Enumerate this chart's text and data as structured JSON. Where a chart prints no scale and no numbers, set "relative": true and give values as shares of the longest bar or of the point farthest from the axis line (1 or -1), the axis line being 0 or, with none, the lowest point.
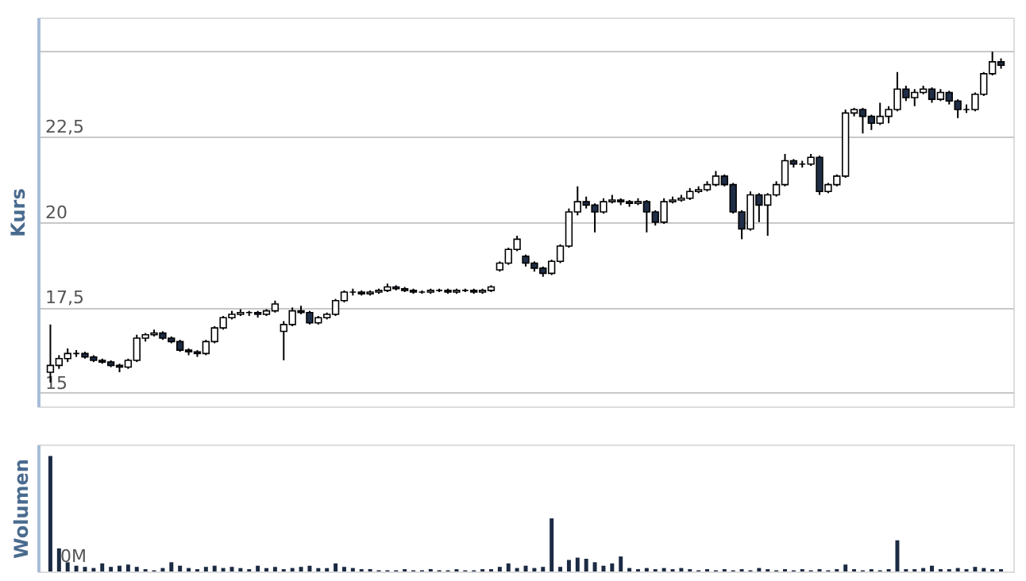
{
  "chart_data": [
    {
      "type": "candlestick",
      "ylabel": "Kurs",
      "grid": "y",
      "ylim": [
        14.6,
        26
      ],
      "colors": [
        "#ffffff",
        "#ffffff",
        "#ffffff",
        "#000000",
        "#1f2d47",
        "#1f2d47",
        "#1f2d47",
        "#1f2d47",
        "#1f2d47",
        "#ffffff",
        "#ffffff",
        "#ffffff",
        "#ffffff",
        "#1f2d47",
        "#1f2d47",
        "#1f2d47",
        "#1f2d47",
        "#1f2d47",
        "#ffffff",
        "#ffffff",
        "#ffffff",
        "#ffffff",
        "#ffffff",
        "#000000",
        "#1f2d47",
        "#ffffff",
        "#ffffff",
        "#ffffff",
        "#ffffff",
        "#1f2d47",
        "#1f2d47",
        "#ffffff",
        "#ffffff",
        "#ffffff",
        "#ffffff",
        "#000000",
        "#1f2d47",
        "#ffffff",
        "#ffffff",
        "#ffffff",
        "#1f2d47",
        "#1f2d47",
        "#1f2d47",
        "#000000",
        "#ffffff",
        "#000000",
        "#1f2d47",
        "#ffffff",
        "#000000",
        "#1f2d47",
        "#ffffff",
        "#ffffff",
        "#ffffff",
        "#ffffff",
        "#ffffff",
        "#1f2d47",
        "#1f2d47",
        "#1f2d47",
        "#ffffff",
        "#ffffff",
        "#ffffff",
        "#ffffff",
        "#1f2d47",
        "#1f2d47",
        "#ffffff",
        "#ffffff",
        "#1f2d47",
        "#1f2d47",
        "#ffffff",
        "#1f2d47",
        "#1f2d47",
        "#ffffff",
        "#ffffff",
        "#ffffff",
        "#ffffff",
        "#ffffff",
        "#ffffff",
        "#ffffff",
        "#1f2d47",
        "#1f2d47",
        "#1f2d47",
        "#ffffff",
        "#1f2d47",
        "#ffffff",
        "#ffffff",
        "#ffffff",
        "#1f2d47",
        "#000000",
        "#ffffff",
        "#1f2d47",
        "#ffffff",
        "#ffffff",
        "#ffffff",
        "#ffffff",
        "#1f2d47",
        "#1f2d47",
        "#ffffff",
        "#ffffff",
        "#ffffff",
        "#1f2d47",
        "#ffffff",
        "#ffffff",
        "#1f2d47",
        "#ffffff",
        "#1f2d47",
        "#1f2d47",
        "#000000",
        "#ffffff",
        "#ffffff",
        "#ffffff",
        "#1f2d47"
      ],
      "yticks": [
        15,
        {
          "value": 17.5,
          "label": "17,5"
        },
        20,
        {
          "value": 22.5,
          "label": "22,5"
        },
        {
          "value": 25,
          "label": null
        }
      ],
      "categories": [
        null,
        null,
        null,
        null,
        null,
        null,
        null,
        null,
        null,
        null,
        null,
        null,
        null,
        null,
        null,
        null,
        null,
        null,
        null,
        null,
        null,
        null,
        null,
        null,
        null,
        null,
        null,
        null,
        null,
        null,
        null,
        null,
        null,
        null,
        null,
        null,
        null,
        null,
        null,
        null,
        null,
        null,
        null,
        null,
        null,
        null,
        null,
        null,
        null,
        null,
        null,
        null,
        null,
        null,
        null,
        null,
        null,
        null,
        null,
        null,
        null,
        null,
        null,
        null,
        null,
        null,
        null,
        null,
        null,
        null,
        null,
        null,
        null,
        null,
        null,
        null,
        null,
        null,
        null,
        null,
        null,
        null,
        null,
        null,
        null,
        null,
        null,
        null,
        null,
        null,
        null,
        null,
        null,
        null,
        null,
        null,
        null,
        null,
        null,
        null,
        null,
        null,
        null,
        null,
        null,
        null,
        null,
        null,
        null,
        null,
        null
      ],
      "ohlc": [
        [
          15.6,
          17.0,
          15.3,
          15.8
        ],
        [
          15.8,
          16.1,
          15.7,
          16.0
        ],
        [
          16.0,
          16.3,
          15.9,
          16.15
        ],
        [
          16.15,
          16.25,
          16.05,
          16.15
        ],
        [
          16.15,
          16.2,
          16.0,
          16.05
        ],
        [
          16.05,
          16.1,
          15.9,
          15.95
        ],
        [
          15.95,
          16.0,
          15.85,
          15.9
        ],
        [
          15.9,
          15.95,
          15.75,
          15.8
        ],
        [
          15.8,
          15.85,
          15.6,
          15.75
        ],
        [
          15.75,
          16.0,
          15.7,
          15.95
        ],
        [
          15.95,
          16.7,
          15.9,
          16.6
        ],
        [
          16.6,
          16.75,
          16.5,
          16.7
        ],
        [
          16.7,
          16.85,
          16.65,
          16.75
        ],
        [
          16.75,
          16.8,
          16.55,
          16.6
        ],
        [
          16.6,
          16.65,
          16.45,
          16.5
        ],
        [
          16.5,
          16.55,
          16.2,
          16.25
        ],
        [
          16.25,
          16.3,
          16.1,
          16.2
        ],
        [
          16.2,
          16.25,
          16.05,
          16.15
        ],
        [
          16.15,
          16.55,
          16.1,
          16.5
        ],
        [
          16.5,
          16.95,
          16.45,
          16.9
        ],
        [
          16.9,
          17.25,
          16.85,
          17.2
        ],
        [
          17.2,
          17.4,
          17.15,
          17.3
        ],
        [
          17.3,
          17.45,
          17.25,
          17.35
        ],
        [
          17.35,
          17.4,
          17.25,
          17.35
        ],
        [
          17.35,
          17.4,
          17.2,
          17.3
        ],
        [
          17.3,
          17.45,
          17.25,
          17.4
        ],
        [
          17.4,
          17.7,
          17.35,
          17.6
        ],
        [
          16.8,
          17.1,
          15.95,
          17.0
        ],
        [
          17.0,
          17.5,
          16.95,
          17.4
        ],
        [
          17.4,
          17.55,
          17.3,
          17.35
        ],
        [
          17.35,
          17.4,
          17.0,
          17.05
        ],
        [
          17.05,
          17.25,
          17.0,
          17.2
        ],
        [
          17.2,
          17.35,
          17.15,
          17.3
        ],
        [
          17.3,
          17.75,
          17.25,
          17.7
        ],
        [
          17.7,
          18.0,
          17.65,
          17.95
        ],
        [
          17.95,
          18.05,
          17.85,
          17.95
        ],
        [
          17.95,
          18.0,
          17.85,
          17.9
        ],
        [
          17.9,
          18.0,
          17.85,
          17.95
        ],
        [
          17.95,
          18.05,
          17.9,
          18.0
        ],
        [
          18.0,
          18.2,
          17.95,
          18.1
        ],
        [
          18.1,
          18.15,
          18.0,
          18.05
        ],
        [
          18.05,
          18.1,
          17.95,
          18.0
        ],
        [
          18.0,
          18.05,
          17.9,
          17.95
        ],
        [
          17.95,
          18.0,
          17.9,
          17.95
        ],
        [
          17.95,
          18.05,
          17.9,
          18.0
        ],
        [
          18.0,
          18.05,
          17.95,
          18.0
        ],
        [
          18.0,
          18.05,
          17.9,
          17.95
        ],
        [
          17.95,
          18.05,
          17.9,
          18.0
        ],
        [
          18.0,
          18.05,
          17.95,
          18.0
        ],
        [
          18.0,
          18.05,
          17.9,
          17.95
        ],
        [
          17.95,
          18.05,
          17.9,
          18.0
        ],
        [
          18.0,
          18.15,
          17.95,
          18.1
        ],
        [
          18.6,
          18.85,
          18.55,
          18.8
        ],
        [
          18.8,
          19.25,
          18.75,
          19.2
        ],
        [
          19.2,
          19.6,
          19.15,
          19.5
        ],
        [
          19.0,
          19.05,
          18.7,
          18.8
        ],
        [
          18.8,
          18.85,
          18.55,
          18.65
        ],
        [
          18.65,
          18.7,
          18.4,
          18.5
        ],
        [
          18.5,
          18.9,
          18.45,
          18.85
        ],
        [
          18.85,
          19.35,
          18.8,
          19.3
        ],
        [
          19.3,
          20.4,
          19.25,
          20.3
        ],
        [
          20.3,
          21.05,
          20.2,
          20.6
        ],
        [
          20.6,
          20.75,
          20.4,
          20.5
        ],
        [
          20.5,
          20.55,
          19.7,
          20.3
        ],
        [
          20.3,
          20.7,
          20.25,
          20.6
        ],
        [
          20.6,
          20.8,
          20.55,
          20.65
        ],
        [
          20.65,
          20.7,
          20.5,
          20.6
        ],
        [
          20.6,
          20.65,
          20.45,
          20.55
        ],
        [
          20.55,
          20.7,
          20.5,
          20.6
        ],
        [
          20.6,
          20.65,
          19.7,
          20.3
        ],
        [
          20.3,
          20.35,
          19.9,
          20.0
        ],
        [
          20.0,
          20.7,
          19.95,
          20.6
        ],
        [
          20.6,
          20.75,
          20.55,
          20.65
        ],
        [
          20.65,
          20.8,
          20.6,
          20.7
        ],
        [
          20.7,
          21.0,
          20.65,
          20.9
        ],
        [
          20.9,
          21.05,
          20.85,
          20.95
        ],
        [
          20.95,
          21.2,
          20.9,
          21.1
        ],
        [
          21.1,
          21.5,
          21.05,
          21.35
        ],
        [
          21.35,
          21.4,
          21.05,
          21.1
        ],
        [
          21.1,
          21.15,
          20.25,
          20.3
        ],
        [
          20.3,
          20.35,
          19.5,
          19.8
        ],
        [
          19.8,
          20.9,
          19.75,
          20.8
        ],
        [
          20.8,
          20.85,
          20.0,
          20.5
        ],
        [
          20.5,
          20.85,
          19.6,
          20.8
        ],
        [
          20.8,
          21.2,
          20.75,
          21.1
        ],
        [
          21.1,
          22.0,
          21.05,
          21.8
        ],
        [
          21.8,
          21.85,
          21.6,
          21.7
        ],
        [
          21.7,
          21.8,
          21.6,
          21.7
        ],
        [
          21.7,
          22.0,
          21.65,
          21.9
        ],
        [
          21.9,
          21.95,
          20.8,
          20.9
        ],
        [
          20.9,
          21.15,
          20.85,
          21.1
        ],
        [
          21.1,
          21.4,
          21.05,
          21.35
        ],
        [
          21.35,
          23.3,
          21.3,
          23.2
        ],
        [
          23.2,
          23.35,
          23.1,
          23.3
        ],
        [
          23.3,
          23.35,
          22.6,
          23.1
        ],
        [
          23.1,
          23.15,
          22.7,
          22.9
        ],
        [
          22.9,
          23.5,
          22.85,
          23.1
        ],
        [
          23.1,
          23.4,
          22.9,
          23.3
        ],
        [
          23.3,
          24.4,
          23.25,
          23.9
        ],
        [
          23.9,
          24.0,
          23.55,
          23.65
        ],
        [
          23.65,
          23.9,
          23.4,
          23.8
        ],
        [
          23.8,
          24.0,
          23.75,
          23.9
        ],
        [
          23.9,
          23.95,
          23.5,
          23.6
        ],
        [
          23.6,
          23.9,
          23.55,
          23.8
        ],
        [
          23.8,
          23.85,
          23.45,
          23.55
        ],
        [
          23.55,
          23.6,
          23.05,
          23.3
        ],
        [
          23.3,
          23.45,
          23.2,
          23.3
        ],
        [
          23.3,
          23.8,
          23.25,
          23.75
        ],
        [
          23.75,
          24.4,
          23.7,
          24.35
        ],
        [
          24.35,
          25.0,
          24.3,
          24.7
        ],
        [
          24.7,
          24.8,
          24.5,
          24.6
        ]
      ]
    },
    {
      "type": "bar",
      "relative": true,
      "ylabel": "Wolumen",
      "color": "#1c2b44",
      "annotations": [
        "0M"
      ],
      "categories": [
        null,
        null,
        null,
        null,
        null,
        null,
        null,
        null,
        null,
        null,
        null,
        null,
        null,
        null,
        null,
        null,
        null,
        null,
        null,
        null,
        null,
        null,
        null,
        null,
        null,
        null,
        null,
        null,
        null,
        null,
        null,
        null,
        null,
        null,
        null,
        null,
        null,
        null,
        null,
        null,
        null,
        null,
        null,
        null,
        null,
        null,
        null,
        null,
        null,
        null,
        null,
        null,
        null,
        null,
        null,
        null,
        null,
        null,
        null,
        null,
        null,
        null,
        null,
        null,
        null,
        null,
        null,
        null,
        null,
        null,
        null,
        null,
        null,
        null,
        null,
        null,
        null,
        null,
        null,
        null,
        null,
        null,
        null,
        null,
        null,
        null,
        null,
        null,
        null,
        null,
        null,
        null,
        null,
        null,
        null,
        null,
        null,
        null,
        null,
        null,
        null,
        null,
        null,
        null,
        null,
        null,
        null,
        null,
        null,
        null,
        null
      ],
      "values": [
        1,
        0.2,
        0.08,
        0.05,
        0.04,
        0.03,
        0.07,
        0.04,
        0.05,
        0.06,
        0.04,
        0.02,
        0.01,
        0.03,
        0.08,
        0.05,
        0.03,
        0.02,
        0.04,
        0.05,
        0.03,
        0.04,
        0.03,
        0.02,
        0.05,
        0.03,
        0.04,
        0.02,
        0.03,
        0.04,
        0.05,
        0.03,
        0.03,
        0.07,
        0.04,
        0.03,
        0.02,
        0.02,
        0.01,
        0.01,
        0.01,
        0.02,
        0.01,
        0.01,
        0.02,
        0.01,
        0.01,
        0.02,
        0.01,
        0.01,
        0.02,
        0.02,
        0.04,
        0.07,
        0.03,
        0.05,
        0.03,
        0.04,
        0.46,
        0.04,
        0.1,
        0.12,
        0.11,
        0.08,
        0.05,
        0.07,
        0.13,
        0.03,
        0.02,
        0.03,
        0.02,
        0.03,
        0.02,
        0.03,
        0.02,
        0.01,
        0.02,
        0.01,
        0.02,
        0.01,
        0.02,
        0.01,
        0.03,
        0.02,
        0.01,
        0.02,
        0.01,
        0.02,
        0.01,
        0.02,
        0.01,
        0.02,
        0.06,
        0.02,
        0.01,
        0.02,
        0.01,
        0.02,
        0.27,
        0.02,
        0.02,
        0.03,
        0.05,
        0.02,
        0.02,
        0.03,
        0.02,
        0.04,
        0.03,
        0.02,
        0.02
      ]
    }
  ]
}
